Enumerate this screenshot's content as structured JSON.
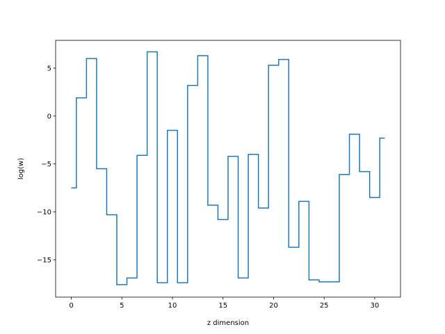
{
  "chart_data": {
    "type": "line",
    "drawstyle": "steps-mid",
    "title": "",
    "xlabel": "z dimension",
    "ylabel": "log(w)",
    "xlim": [
      -1.55,
      32.55
    ],
    "ylim": [
      -18.9,
      7.9
    ],
    "xticks": [
      0,
      5,
      10,
      15,
      20,
      25,
      30
    ],
    "yticks": [
      -15,
      -10,
      -5,
      0,
      5
    ],
    "ytick_labels": [
      "−15",
      "−10",
      "−5",
      "0",
      "5"
    ],
    "grid": false,
    "legend": "none",
    "series": [
      {
        "color": "#1f77b4",
        "x": [
          0,
          1,
          2,
          3,
          4,
          5,
          6,
          7,
          8,
          9,
          10,
          11,
          12,
          13,
          14,
          15,
          16,
          17,
          18,
          19,
          20,
          21,
          22,
          23,
          24,
          25,
          26,
          27,
          28,
          29,
          30,
          31
        ],
        "values": [
          -7.5,
          1.9,
          6.0,
          -5.5,
          -10.3,
          -17.6,
          -16.9,
          -4.1,
          6.7,
          -17.4,
          -1.5,
          -17.4,
          3.2,
          6.3,
          -9.3,
          -10.8,
          -4.2,
          -16.9,
          -4.0,
          -9.6,
          5.3,
          5.9,
          -13.7,
          -8.9,
          -17.1,
          -17.3,
          -17.3,
          -6.1,
          -1.9,
          -5.8,
          -8.5,
          -2.3
        ]
      }
    ]
  }
}
